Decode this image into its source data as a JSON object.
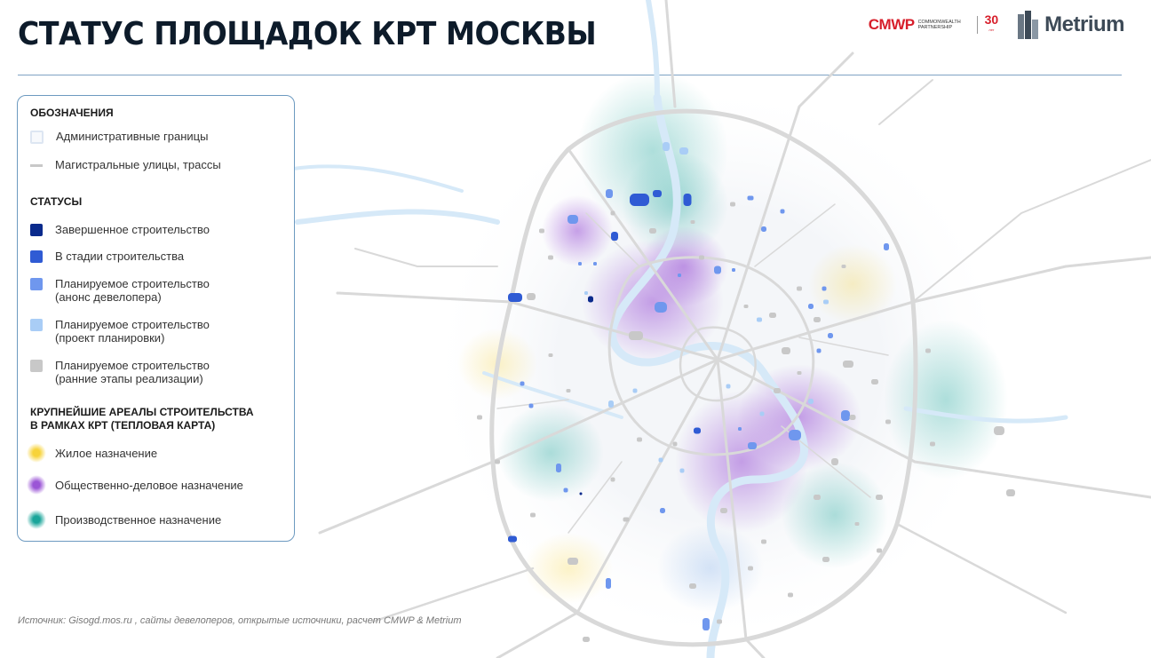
{
  "title": "СТАТУС ПЛОЩАДОК КРТ МОСКВЫ",
  "logos": {
    "cmwp_mark": "CMWP",
    "cmwp_name": "Commonwealth Partnership",
    "cmwp_years": "30",
    "cmwp_years_label": "лет",
    "metrium": "Metrium"
  },
  "legend": {
    "section_designations": "ОБОЗНАЧЕНИЯ",
    "admin_borders": "Административные границы",
    "main_streets": "Магистральные улицы, трассы",
    "section_statuses": "СТАТУСЫ",
    "statuses": [
      {
        "label": "Завершенное строительство",
        "color": "#0a2a8c"
      },
      {
        "label": "В стадии строительства",
        "color": "#2f5bd4"
      },
      {
        "label": "Планируемое строительство\n(анонс девелопера)",
        "color": "#6f97ee"
      },
      {
        "label": "Планируемое строительство\n(проект планировки)",
        "color": "#a9cdf6"
      },
      {
        "label": "Планируемое строительство\n(ранние этапы реализации)",
        "color": "#c8c8c8"
      }
    ],
    "section_heat": "КРУПНЕЙШИЕ АРЕАЛЫ СТРОИТЕЛЬСТВА\nВ РАМКАХ КРТ (ТЕПЛОВАЯ КАРТА)",
    "heat": [
      {
        "label": "Жилое назначение",
        "color": "#f7d33a"
      },
      {
        "label": "Общественно-деловое назначение",
        "color": "#9b55d6"
      },
      {
        "label": "Производственное назначение",
        "color": "#1aa59a"
      }
    ]
  },
  "footnote": "Источник: Gisogd.mos.ru , сайты девелоперов, открытые источники, расчет CMWP & Metrium",
  "colors": {
    "accent_rule": "#7fa3c4",
    "roads": "#d9d9d9",
    "water": "#d6e9f8"
  }
}
